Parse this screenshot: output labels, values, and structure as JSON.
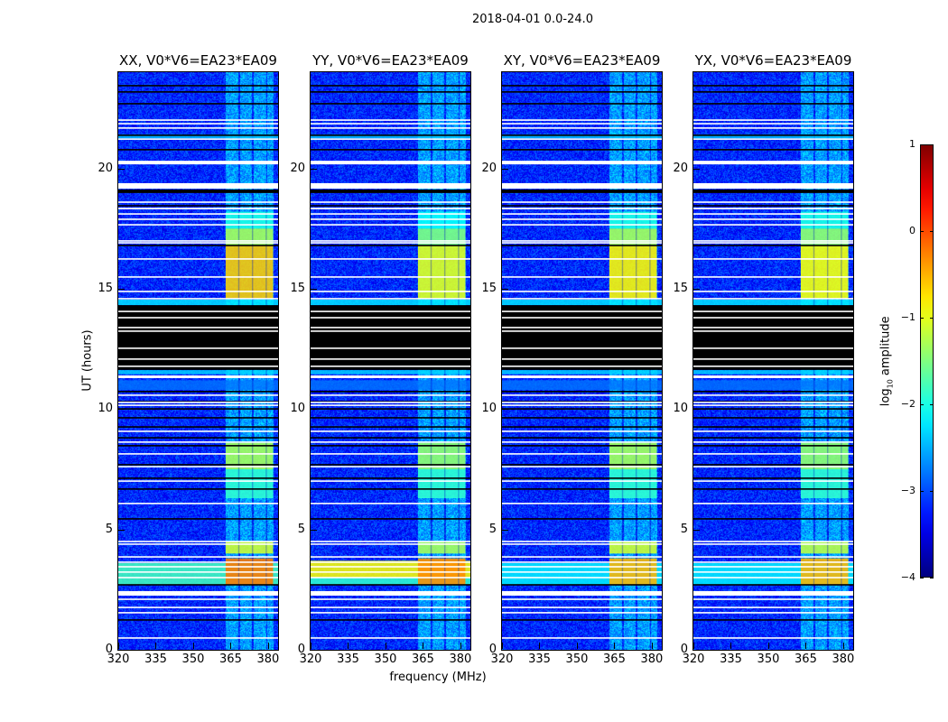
{
  "chart_data": {
    "type": "heatmap",
    "title": "2018-04-01 0.0-24.0",
    "xlabel": "frequency (MHz)",
    "ylabel": "UT (hours)",
    "xlim": [
      320,
      384
    ],
    "ylim": [
      0,
      24
    ],
    "xticks": [
      320,
      335,
      350,
      365,
      380
    ],
    "xtick_labels": [
      "320",
      "335",
      "350",
      "365",
      "380"
    ],
    "yticks": [
      0,
      5,
      10,
      15,
      20
    ],
    "ytick_labels": [
      "0",
      "5",
      "10",
      "15",
      "20"
    ],
    "colorbar": {
      "label_main": "log",
      "label_sub": "10",
      "label_rest": " amplitude",
      "cmap": "jet",
      "range": [
        -4,
        1
      ],
      "ticks": [
        1,
        0,
        -1,
        -2,
        -3,
        -4
      ],
      "tick_labels": [
        "1",
        "0",
        "−1",
        "−2",
        "−3",
        "−4"
      ]
    },
    "background_log_amplitude": -3.2,
    "rfi_stripes": {
      "freq_ranges": [
        [
          363,
          368
        ],
        [
          368.5,
          373.5
        ],
        [
          374,
          379
        ],
        [
          379.5,
          382
        ]
      ],
      "log_amplitude": -2.6
    },
    "full_band_rows": [
      [
        14.32,
        14.55,
        -2.2
      ],
      [
        11.45,
        11.62,
        -2.3
      ],
      [
        21.25,
        21.42,
        -2.4
      ],
      [
        10.8,
        11.2,
        -2.8
      ]
    ],
    "flagged_black": [
      [
        11.63,
        14.32
      ],
      [
        23.41,
        23.47
      ],
      [
        23.15,
        23.21
      ],
      [
        22.66,
        22.72
      ],
      [
        21.35,
        21.41
      ],
      [
        20.75,
        20.81
      ],
      [
        18.98,
        19.12
      ],
      [
        18.42,
        18.48
      ],
      [
        16.77,
        16.83
      ],
      [
        10.7,
        10.76
      ],
      [
        10.28,
        10.34
      ],
      [
        9.98,
        10.04
      ],
      [
        9.61,
        9.67
      ],
      [
        9.23,
        9.29
      ],
      [
        8.78,
        8.84
      ],
      [
        8.45,
        8.51
      ],
      [
        7.66,
        7.72
      ],
      [
        7.1,
        7.16
      ],
      [
        6.65,
        6.71
      ],
      [
        5.41,
        5.47
      ],
      [
        2.67,
        2.73
      ],
      [
        1.21,
        1.27
      ]
    ],
    "flagged_white": [
      [
        21.98,
        22.04
      ],
      [
        21.83,
        21.89
      ],
      [
        21.65,
        21.71
      ],
      [
        21.19,
        21.25
      ],
      [
        20.17,
        20.32
      ],
      [
        19.16,
        19.39
      ],
      [
        18.57,
        18.63
      ],
      [
        18.3,
        18.37
      ],
      [
        18.08,
        18.14
      ],
      [
        17.86,
        17.92
      ],
      [
        17.63,
        17.69
      ],
      [
        16.96,
        17.02
      ],
      [
        16.88,
        16.94
      ],
      [
        16.21,
        16.27
      ],
      [
        15.46,
        15.52
      ],
      [
        14.86,
        14.92
      ],
      [
        14.56,
        14.62
      ],
      [
        14.03,
        14.09
      ],
      [
        13.77,
        13.83
      ],
      [
        13.36,
        13.42
      ],
      [
        13.21,
        13.27
      ],
      [
        12.5,
        12.56
      ],
      [
        12.05,
        12.11
      ],
      [
        11.75,
        11.81
      ],
      [
        11.29,
        11.4
      ],
      [
        10.55,
        10.61
      ],
      [
        10.25,
        10.31
      ],
      [
        10.13,
        10.19
      ],
      [
        9.05,
        9.11
      ],
      [
        8.6,
        8.66
      ],
      [
        8.11,
        8.17
      ],
      [
        7.58,
        7.64
      ],
      [
        6.98,
        7.04
      ],
      [
        6.05,
        6.11
      ],
      [
        4.47,
        4.53
      ],
      [
        4.36,
        4.42
      ],
      [
        3.83,
        3.89
      ],
      [
        3.61,
        3.67
      ],
      [
        3.42,
        3.48
      ],
      [
        3.2,
        3.26
      ],
      [
        2.97,
        3.03
      ],
      [
        2.25,
        2.44
      ],
      [
        2.07,
        2.13
      ],
      [
        1.73,
        1.79
      ],
      [
        1.51,
        1.57
      ],
      [
        0.46,
        0.52
      ]
    ],
    "panels": [
      {
        "title": "XX, V0*V6=EA23*EA09",
        "regions": [
          [
            2.7,
            3.6,
            320,
            384,
            -1.8
          ],
          [
            17.5,
            18.2,
            363,
            382,
            -2.0
          ],
          [
            16.8,
            17.5,
            363,
            382,
            -1.3
          ],
          [
            14.6,
            16.8,
            363,
            382,
            -0.6
          ],
          [
            6.3,
            7.5,
            363,
            382,
            -1.9
          ],
          [
            7.5,
            8.6,
            363,
            382,
            -1.3
          ],
          [
            4.0,
            4.5,
            363,
            382,
            -1.1
          ],
          [
            2.7,
            3.8,
            363,
            382,
            -0.2
          ]
        ]
      },
      {
        "title": "YY, V0*V6=EA23*EA09",
        "regions": [
          [
            3.0,
            3.7,
            320,
            384,
            -0.9
          ],
          [
            2.7,
            3.0,
            320,
            384,
            -1.9
          ],
          [
            17.5,
            18.2,
            363,
            382,
            -2.1
          ],
          [
            16.8,
            17.5,
            363,
            382,
            -1.5
          ],
          [
            14.6,
            16.8,
            363,
            382,
            -1.0
          ],
          [
            6.3,
            7.5,
            363,
            382,
            -1.9
          ],
          [
            7.5,
            8.6,
            363,
            382,
            -1.4
          ],
          [
            4.0,
            4.5,
            363,
            382,
            -1.3
          ],
          [
            2.7,
            3.8,
            363,
            382,
            -0.3
          ]
        ]
      },
      {
        "title": "XY, V0*V6=EA23*EA09",
        "regions": [
          [
            2.7,
            3.6,
            320,
            384,
            -2.2
          ],
          [
            17.5,
            18.2,
            363,
            382,
            -2.0
          ],
          [
            16.8,
            17.5,
            363,
            382,
            -1.3
          ],
          [
            14.6,
            16.8,
            363,
            382,
            -0.8
          ],
          [
            6.3,
            7.5,
            363,
            382,
            -1.9
          ],
          [
            7.5,
            8.6,
            363,
            382,
            -1.3
          ],
          [
            4.0,
            4.5,
            363,
            382,
            -1.1
          ],
          [
            2.7,
            3.8,
            363,
            382,
            -0.5
          ]
        ]
      },
      {
        "title": "YX, V0*V6=EA23*EA09",
        "regions": [
          [
            2.7,
            3.6,
            320,
            384,
            -2.2
          ],
          [
            17.5,
            18.2,
            363,
            382,
            -2.0
          ],
          [
            16.8,
            17.5,
            363,
            382,
            -1.4
          ],
          [
            14.6,
            16.8,
            363,
            382,
            -0.9
          ],
          [
            6.3,
            7.5,
            363,
            382,
            -1.9
          ],
          [
            7.5,
            8.6,
            363,
            382,
            -1.4
          ],
          [
            4.0,
            4.5,
            363,
            382,
            -1.2
          ],
          [
            2.7,
            3.8,
            363,
            382,
            -0.5
          ]
        ]
      }
    ]
  }
}
